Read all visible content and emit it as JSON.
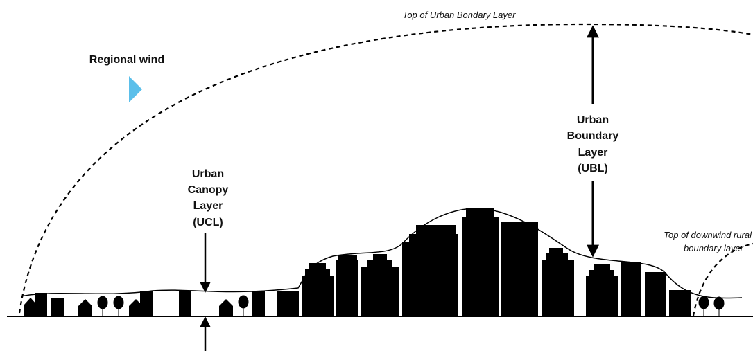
{
  "labels": {
    "top_ubl": "Top of Urban Bondary Layer",
    "regional_wind": "Regional wind",
    "ucl": [
      "Urban",
      "Canopy",
      "Layer",
      "(UCL)"
    ],
    "ubl": [
      "Urban",
      "Boundary",
      "Layer",
      "(UBL)"
    ],
    "rural": [
      "Top of downwind rural",
      "boundary layer"
    ]
  }
}
